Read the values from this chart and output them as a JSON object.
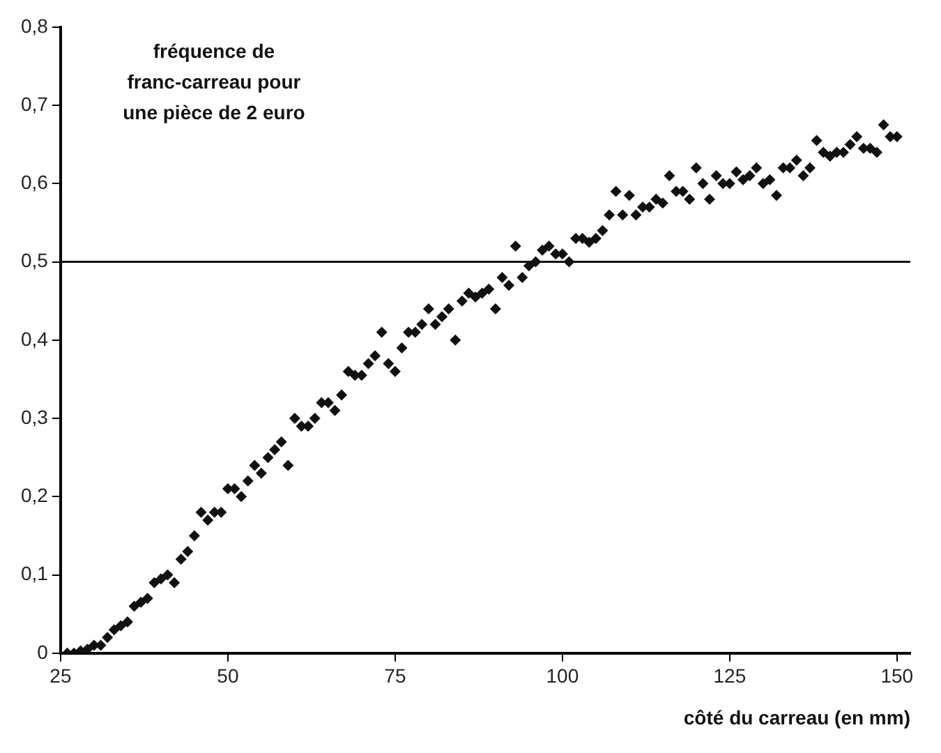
{
  "chart_data": {
    "type": "scatter",
    "title": "fréquence de franc-carreau pour une pièce de 2 euro",
    "xlabel": "côté du carreau (en mm)",
    "marker": "diamond",
    "grid": false,
    "legend": false,
    "x": [
      26,
      27,
      28,
      29,
      30,
      31,
      32,
      33,
      34,
      35,
      36,
      37,
      38,
      39,
      40,
      41,
      42,
      43,
      44,
      45,
      46,
      47,
      48,
      49,
      50,
      51,
      52,
      53,
      54,
      55,
      56,
      57,
      58,
      59,
      60,
      61,
      62,
      63,
      64,
      65,
      66,
      67,
      68,
      69,
      70,
      71,
      72,
      73,
      74,
      75,
      76,
      77,
      78,
      79,
      80,
      81,
      82,
      83,
      84,
      85,
      86,
      87,
      88,
      89,
      90,
      91,
      92,
      93,
      94,
      95,
      96,
      97,
      98,
      99,
      100,
      101,
      102,
      103,
      104,
      105,
      106,
      107,
      108,
      109,
      110,
      111,
      112,
      113,
      114,
      115,
      116,
      117,
      118,
      119,
      120,
      121,
      122,
      123,
      124,
      125,
      126,
      127,
      128,
      129,
      130,
      131,
      132,
      133,
      134,
      135,
      136,
      137,
      138,
      139,
      140,
      141,
      142,
      143,
      144,
      145,
      146,
      147,
      148,
      149,
      150
    ],
    "series": [
      {
        "color": "#111111",
        "values": [
          0,
          0,
          0.003,
          0.005,
          0.01,
          0.01,
          0.02,
          0.03,
          0.035,
          0.04,
          0.06,
          0.065,
          0.07,
          0.09,
          0.095,
          0.1,
          0.09,
          0.12,
          0.13,
          0.15,
          0.18,
          0.17,
          0.18,
          0.18,
          0.21,
          0.21,
          0.2,
          0.22,
          0.24,
          0.23,
          0.25,
          0.26,
          0.27,
          0.24,
          0.3,
          0.29,
          0.29,
          0.3,
          0.32,
          0.32,
          0.31,
          0.33,
          0.36,
          0.355,
          0.355,
          0.37,
          0.38,
          0.41,
          0.37,
          0.36,
          0.39,
          0.41,
          0.41,
          0.42,
          0.44,
          0.42,
          0.43,
          0.44,
          0.4,
          0.45,
          0.46,
          0.455,
          0.46,
          0.465,
          0.44,
          0.48,
          0.47,
          0.52,
          0.48,
          0.495,
          0.5,
          0.515,
          0.52,
          0.51,
          0.51,
          0.5,
          0.53,
          0.53,
          0.525,
          0.53,
          0.54,
          0.56,
          0.59,
          0.56,
          0.585,
          0.56,
          0.57,
          0.57,
          0.58,
          0.575,
          0.61,
          0.59,
          0.59,
          0.58,
          0.62,
          0.6,
          0.58,
          0.61,
          0.6,
          0.6,
          0.615,
          0.605,
          0.61,
          0.62,
          0.6,
          0.605,
          0.585,
          0.62,
          0.62,
          0.63,
          0.61,
          0.62,
          0.655,
          0.64,
          0.635,
          0.64,
          0.64,
          0.65,
          0.66,
          0.645,
          0.645,
          0.64,
          0.675,
          0.66,
          0.66
        ]
      }
    ],
    "xlim": [
      25,
      152
    ],
    "xticks": [
      25,
      50,
      75,
      100,
      125,
      150
    ],
    "ylim": [
      0,
      0.8
    ],
    "yticks": [
      {
        "value": 0,
        "label": "0"
      },
      {
        "value": 0.1,
        "label": "0,1"
      },
      {
        "value": 0.2,
        "label": "0,2"
      },
      {
        "value": 0.3,
        "label": "0,3"
      },
      {
        "value": 0.4,
        "label": "0,4"
      },
      {
        "value": 0.5,
        "label": "0,5"
      },
      {
        "value": 0.6,
        "label": "0,6"
      },
      {
        "value": 0.7,
        "label": "0,7"
      },
      {
        "value": 0.8,
        "label": "0,8"
      }
    ],
    "ref_lines": [
      {
        "axis": "y",
        "value": 0.5,
        "color": "#111111"
      }
    ]
  }
}
